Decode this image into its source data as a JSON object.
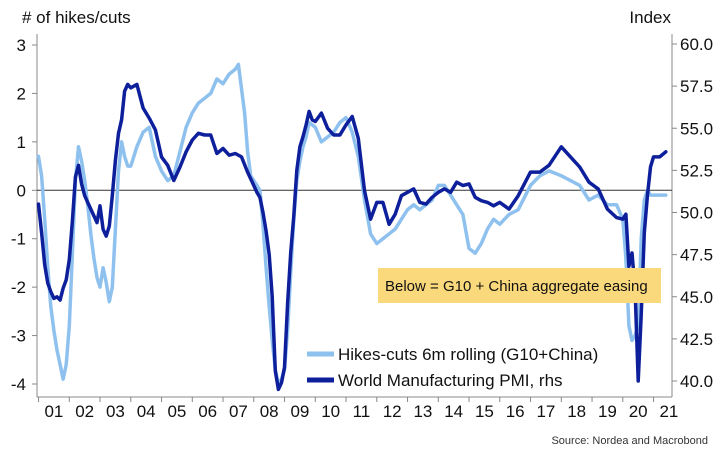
{
  "chart_data": {
    "type": "line",
    "left_axis_title": "# of hikes/cuts",
    "right_axis_title": "Index",
    "left_ylim": [
      -4.2,
      3.2
    ],
    "right_ylim": [
      39.5,
      60.5
    ],
    "left_ticks": [
      {
        "v": 3,
        "label": "3"
      },
      {
        "v": 2,
        "label": "2"
      },
      {
        "v": 1,
        "label": "1"
      },
      {
        "v": 0,
        "label": "0"
      },
      {
        "v": -1,
        "label": "-1"
      },
      {
        "v": -2,
        "label": "-2"
      },
      {
        "v": -3,
        "label": "-3"
      },
      {
        "v": -4,
        "label": "-4"
      }
    ],
    "right_ticks": [
      {
        "v": 60,
        "label": "60.0"
      },
      {
        "v": 57.5,
        "label": "57.5"
      },
      {
        "v": 55,
        "label": "55.0"
      },
      {
        "v": 52.5,
        "label": "52.5"
      },
      {
        "v": 50,
        "label": "50.0"
      },
      {
        "v": 47.5,
        "label": "47.5"
      },
      {
        "v": 45,
        "label": "45.0"
      },
      {
        "v": 42.5,
        "label": "42.5"
      },
      {
        "v": 40,
        "label": "40.0"
      }
    ],
    "x_categories": [
      "01",
      "02",
      "03",
      "04",
      "05",
      "06",
      "07",
      "08",
      "09",
      "10",
      "11",
      "12",
      "13",
      "14",
      "15",
      "16",
      "17",
      "18",
      "19",
      "20",
      "21"
    ],
    "xlim": [
      2000.95,
      2021.6
    ],
    "series": [
      {
        "name": "Hikes-cuts 6m rolling (G10+China)",
        "axis": "left",
        "color": "#8fc1ee",
        "x": [
          2001.0,
          2001.1,
          2001.2,
          2001.3,
          2001.4,
          2001.5,
          2001.6,
          2001.7,
          2001.8,
          2001.9,
          2002.0,
          2002.1,
          2002.2,
          2002.3,
          2002.4,
          2002.5,
          2002.6,
          2002.7,
          2002.8,
          2002.9,
          2003.0,
          2003.1,
          2003.2,
          2003.3,
          2003.4,
          2003.5,
          2003.6,
          2003.7,
          2003.8,
          2003.9,
          2004.0,
          2004.2,
          2004.4,
          2004.6,
          2004.8,
          2005.0,
          2005.2,
          2005.4,
          2005.6,
          2005.8,
          2006.0,
          2006.2,
          2006.4,
          2006.6,
          2006.8,
          2007.0,
          2007.2,
          2007.4,
          2007.5,
          2007.6,
          2007.7,
          2007.8,
          2007.9,
          2008.0,
          2008.1,
          2008.2,
          2008.3,
          2008.4,
          2008.5,
          2008.6,
          2008.7,
          2008.8,
          2008.9,
          2009.0,
          2009.1,
          2009.2,
          2009.3,
          2009.4,
          2009.5,
          2009.6,
          2009.7,
          2009.8,
          2010.0,
          2010.2,
          2010.4,
          2010.6,
          2010.8,
          2011.0,
          2011.2,
          2011.4,
          2011.6,
          2011.8,
          2012.0,
          2012.2,
          2012.4,
          2012.6,
          2012.8,
          2013.0,
          2013.2,
          2013.4,
          2013.6,
          2013.8,
          2014.0,
          2014.2,
          2014.4,
          2014.6,
          2014.8,
          2015.0,
          2015.2,
          2015.4,
          2015.6,
          2015.8,
          2016.0,
          2016.3,
          2016.6,
          2017.0,
          2017.3,
          2017.6,
          2018.0,
          2018.3,
          2018.6,
          2018.9,
          2019.2,
          2019.5,
          2019.8,
          2020.0,
          2020.1,
          2020.2,
          2020.3,
          2020.4,
          2020.5,
          2020.6,
          2020.7,
          2020.8,
          2020.9,
          2021.0,
          2021.2,
          2021.4
        ],
        "y": [
          0.7,
          0.3,
          -0.6,
          -1.6,
          -2.4,
          -2.9,
          -3.3,
          -3.6,
          -3.9,
          -3.6,
          -2.8,
          -1.3,
          0.2,
          0.9,
          0.6,
          0.2,
          -0.3,
          -0.9,
          -1.4,
          -1.8,
          -2.0,
          -1.6,
          -1.9,
          -2.3,
          -2.0,
          -0.8,
          0.4,
          1.0,
          0.7,
          0.5,
          0.5,
          0.9,
          1.2,
          1.3,
          0.7,
          0.4,
          0.2,
          0.3,
          0.8,
          1.3,
          1.6,
          1.8,
          1.9,
          2.0,
          2.3,
          2.2,
          2.4,
          2.5,
          2.6,
          2.1,
          1.6,
          0.8,
          0.3,
          0.2,
          0.1,
          0.0,
          -0.7,
          -1.6,
          -2.4,
          -3.1,
          -3.7,
          -4.0,
          -3.9,
          -3.7,
          -2.9,
          -1.7,
          -0.6,
          0.2,
          0.6,
          0.9,
          1.1,
          1.4,
          1.3,
          1.0,
          1.1,
          1.2,
          1.4,
          1.5,
          1.2,
          0.7,
          -0.2,
          -0.9,
          -1.1,
          -1.0,
          -0.9,
          -0.8,
          -0.6,
          -0.4,
          -0.3,
          -0.4,
          -0.3,
          -0.2,
          0.1,
          0.1,
          -0.1,
          -0.3,
          -0.5,
          -1.2,
          -1.3,
          -1.1,
          -0.8,
          -0.6,
          -0.7,
          -0.5,
          -0.4,
          0.1,
          0.3,
          0.4,
          0.3,
          0.2,
          0.1,
          -0.2,
          -0.1,
          -0.3,
          -0.3,
          -0.6,
          -1.4,
          -2.8,
          -3.1,
          -3.0,
          -2.8,
          -1.0,
          -0.2,
          0.0,
          -0.1,
          -0.1,
          -0.1,
          -0.1
        ]
      },
      {
        "name": "World Manufacturing PMI, rhs",
        "axis": "right",
        "color": "#0e1f9b",
        "x": [
          2001.0,
          2001.1,
          2001.2,
          2001.3,
          2001.4,
          2001.5,
          2001.6,
          2001.7,
          2001.8,
          2001.9,
          2002.0,
          2002.1,
          2002.2,
          2002.3,
          2002.4,
          2002.5,
          2002.6,
          2002.7,
          2002.8,
          2002.9,
          2003.0,
          2003.1,
          2003.2,
          2003.3,
          2003.4,
          2003.5,
          2003.6,
          2003.7,
          2003.8,
          2003.9,
          2004.0,
          2004.2,
          2004.4,
          2004.6,
          2004.8,
          2005.0,
          2005.2,
          2005.4,
          2005.6,
          2005.8,
          2006.0,
          2006.2,
          2006.4,
          2006.6,
          2006.8,
          2007.0,
          2007.2,
          2007.4,
          2007.6,
          2007.8,
          2008.0,
          2008.1,
          2008.2,
          2008.3,
          2008.4,
          2008.5,
          2008.6,
          2008.7,
          2008.8,
          2008.9,
          2009.0,
          2009.1,
          2009.2,
          2009.3,
          2009.4,
          2009.5,
          2009.6,
          2009.7,
          2009.8,
          2009.9,
          2010.0,
          2010.2,
          2010.4,
          2010.6,
          2010.8,
          2011.0,
          2011.2,
          2011.4,
          2011.6,
          2011.8,
          2012.0,
          2012.2,
          2012.4,
          2012.6,
          2012.8,
          2013.0,
          2013.2,
          2013.4,
          2013.6,
          2013.8,
          2014.0,
          2014.2,
          2014.4,
          2014.6,
          2014.8,
          2015.0,
          2015.2,
          2015.4,
          2015.6,
          2015.8,
          2016.0,
          2016.3,
          2016.6,
          2017.0,
          2017.3,
          2017.6,
          2018.0,
          2018.3,
          2018.6,
          2018.9,
          2019.2,
          2019.5,
          2019.8,
          2020.0,
          2020.1,
          2020.2,
          2020.3,
          2020.4,
          2020.5,
          2020.6,
          2020.7,
          2020.8,
          2020.9,
          2021.0,
          2021.2,
          2021.4
        ],
        "y": [
          50.5,
          48.8,
          46.9,
          45.8,
          45.3,
          44.9,
          45.0,
          44.8,
          45.5,
          46.0,
          47.2,
          49.5,
          52.1,
          52.8,
          51.7,
          51.0,
          50.6,
          50.2,
          49.8,
          49.4,
          50.4,
          49.0,
          48.6,
          49.2,
          51.0,
          53.1,
          54.7,
          55.5,
          57.2,
          57.6,
          57.4,
          57.6,
          56.2,
          55.6,
          54.9,
          53.3,
          52.8,
          51.9,
          52.7,
          53.6,
          54.3,
          54.7,
          54.6,
          54.6,
          53.5,
          53.8,
          53.4,
          53.5,
          53.3,
          52.4,
          51.6,
          51.2,
          50.9,
          50.0,
          48.9,
          47.5,
          45.0,
          40.6,
          39.5,
          39.9,
          40.8,
          44.6,
          47.6,
          49.8,
          52.5,
          53.9,
          54.5,
          55.2,
          56.0,
          55.5,
          55.4,
          55.9,
          55.0,
          54.6,
          54.6,
          55.2,
          55.7,
          54.4,
          51.3,
          49.6,
          50.6,
          50.6,
          49.3,
          49.9,
          51.0,
          51.2,
          51.4,
          50.6,
          50.5,
          50.9,
          51.2,
          51.4,
          51.2,
          51.8,
          51.6,
          51.7,
          50.9,
          50.7,
          50.6,
          50.4,
          50.6,
          50.2,
          51.0,
          52.4,
          52.4,
          52.8,
          53.9,
          53.3,
          52.7,
          51.8,
          51.4,
          50.2,
          49.7,
          49.6,
          49.9,
          46.8,
          47.6,
          45.4,
          40.0,
          43.9,
          48.8,
          51.0,
          52.7,
          53.3,
          53.3,
          53.6
        ]
      }
    ],
    "legend": [
      {
        "label": "Hikes-cuts 6m rolling (G10+China)",
        "color": "#8fc1ee"
      },
      {
        "label": "World Manufacturing PMI, rhs",
        "color": "#0e1f9b"
      }
    ],
    "annotation": {
      "text": "Below = G10 + China aggregate easing",
      "background": "#fad97c"
    },
    "source": "Source: Nordea and Macrobond",
    "zero_line": true,
    "grid": false
  }
}
